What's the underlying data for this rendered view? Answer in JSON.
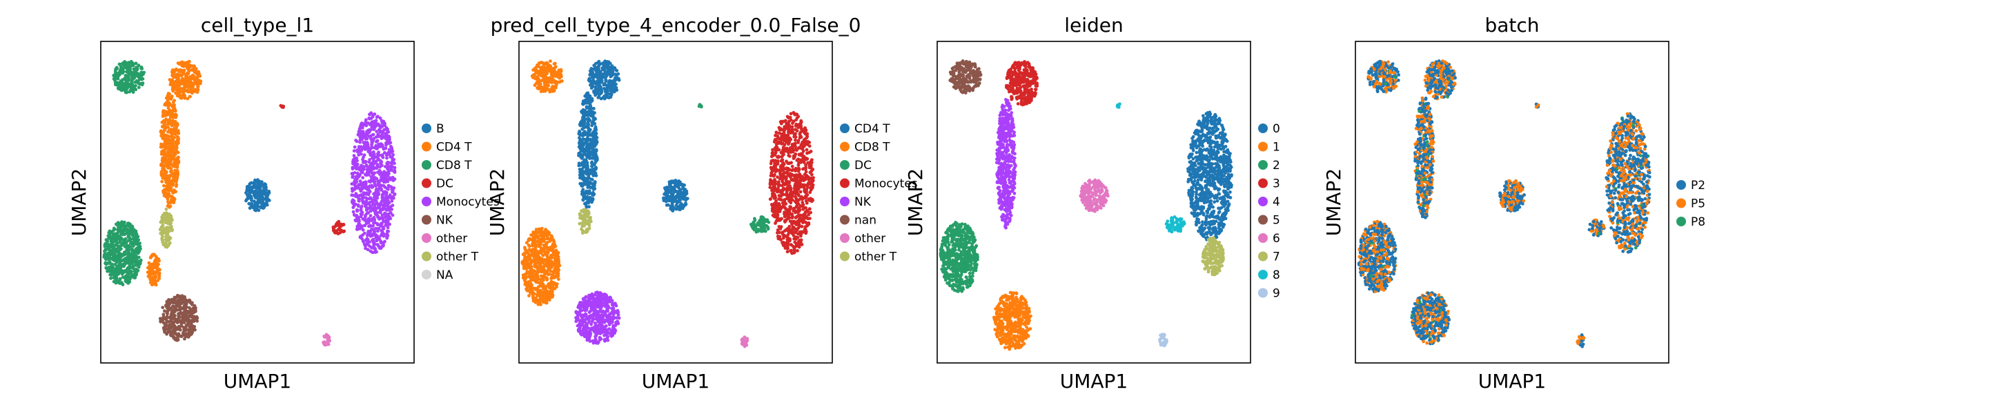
{
  "chart_data": [
    {
      "type": "scatter",
      "title": "cell_type_l1",
      "xlabel": "UMAP1",
      "ylabel": "UMAP2",
      "ticks": "none",
      "grid": false,
      "legend_position": "right",
      "legend": [
        {
          "label": "B",
          "color": "#1f77b4"
        },
        {
          "label": "CD4 T",
          "color": "#ff7f0e"
        },
        {
          "label": "CD8 T",
          "color": "#279e68"
        },
        {
          "label": "DC",
          "color": "#d62728"
        },
        {
          "label": "Monocytes",
          "color": "#aa40fc"
        },
        {
          "label": "NK",
          "color": "#8c564b"
        },
        {
          "label": "other",
          "color": "#e377c2"
        },
        {
          "label": "other T",
          "color": "#b5bd61"
        },
        {
          "label": "NA",
          "color": "#d3d3d3"
        }
      ],
      "clusters": [
        {
          "group": "CD8 T",
          "cx": 0.09,
          "cy": 0.89,
          "rx": 0.05,
          "ry": 0.05
        },
        {
          "group": "CD4 T",
          "cx": 0.27,
          "cy": 0.88,
          "rx": 0.05,
          "ry": 0.06
        },
        {
          "group": "CD4 T",
          "cx": 0.22,
          "cy": 0.66,
          "rx": 0.03,
          "ry": 0.18
        },
        {
          "group": "other T",
          "cx": 0.21,
          "cy": 0.42,
          "rx": 0.02,
          "ry": 0.06
        },
        {
          "group": "CD8 T",
          "cx": 0.07,
          "cy": 0.34,
          "rx": 0.06,
          "ry": 0.1
        },
        {
          "group": "CD4 T",
          "cx": 0.17,
          "cy": 0.29,
          "rx": 0.02,
          "ry": 0.05
        },
        {
          "group": "NK",
          "cx": 0.25,
          "cy": 0.14,
          "rx": 0.06,
          "ry": 0.07
        },
        {
          "group": "B",
          "cx": 0.5,
          "cy": 0.52,
          "rx": 0.04,
          "ry": 0.05
        },
        {
          "group": "Monocytes",
          "cx": 0.87,
          "cy": 0.56,
          "rx": 0.07,
          "ry": 0.22
        },
        {
          "group": "DC",
          "cx": 0.76,
          "cy": 0.42,
          "rx": 0.02,
          "ry": 0.02
        },
        {
          "group": "other",
          "cx": 0.72,
          "cy": 0.07,
          "rx": 0.012,
          "ry": 0.02
        },
        {
          "group": "DC",
          "cx": 0.58,
          "cy": 0.8,
          "rx": 0.006,
          "ry": 0.006
        }
      ]
    },
    {
      "type": "scatter",
      "title": "pred_cell_type_4_encoder_0.0_False_0",
      "xlabel": "UMAP1",
      "ylabel": "UMAP2",
      "ticks": "none",
      "grid": false,
      "legend_position": "right",
      "legend": [
        {
          "label": "CD4 T",
          "color": "#1f77b4"
        },
        {
          "label": "CD8 T",
          "color": "#ff7f0e"
        },
        {
          "label": "DC",
          "color": "#279e68"
        },
        {
          "label": "Monocytes",
          "color": "#d62728"
        },
        {
          "label": "NK",
          "color": "#aa40fc"
        },
        {
          "label": "nan",
          "color": "#8c564b"
        },
        {
          "label": "other",
          "color": "#e377c2"
        },
        {
          "label": "other T",
          "color": "#b5bd61"
        }
      ],
      "clusters": [
        {
          "group": "CD8 T",
          "cx": 0.09,
          "cy": 0.89,
          "rx": 0.05,
          "ry": 0.05
        },
        {
          "group": "CD4 T",
          "cx": 0.27,
          "cy": 0.88,
          "rx": 0.05,
          "ry": 0.06
        },
        {
          "group": "CD4 T",
          "cx": 0.22,
          "cy": 0.66,
          "rx": 0.03,
          "ry": 0.18
        },
        {
          "group": "other T",
          "cx": 0.21,
          "cy": 0.44,
          "rx": 0.02,
          "ry": 0.04
        },
        {
          "group": "CD8 T",
          "cx": 0.07,
          "cy": 0.3,
          "rx": 0.06,
          "ry": 0.12
        },
        {
          "group": "NK",
          "cx": 0.25,
          "cy": 0.14,
          "rx": 0.07,
          "ry": 0.08
        },
        {
          "group": "CD4 T",
          "cx": 0.5,
          "cy": 0.52,
          "rx": 0.04,
          "ry": 0.05
        },
        {
          "group": "Monocytes",
          "cx": 0.87,
          "cy": 0.56,
          "rx": 0.07,
          "ry": 0.22
        },
        {
          "group": "DC",
          "cx": 0.77,
          "cy": 0.43,
          "rx": 0.03,
          "ry": 0.025
        },
        {
          "group": "other",
          "cx": 0.72,
          "cy": 0.07,
          "rx": 0.012,
          "ry": 0.02
        },
        {
          "group": "DC",
          "cx": 0.58,
          "cy": 0.8,
          "rx": 0.006,
          "ry": 0.006
        }
      ]
    },
    {
      "type": "scatter",
      "title": "leiden",
      "xlabel": "UMAP1",
      "ylabel": "UMAP2",
      "ticks": "none",
      "grid": false,
      "legend_position": "right",
      "legend": [
        {
          "label": "0",
          "color": "#1f77b4"
        },
        {
          "label": "1",
          "color": "#ff7f0e"
        },
        {
          "label": "2",
          "color": "#279e68"
        },
        {
          "label": "3",
          "color": "#d62728"
        },
        {
          "label": "4",
          "color": "#aa40fc"
        },
        {
          "label": "5",
          "color": "#8c564b"
        },
        {
          "label": "6",
          "color": "#e377c2"
        },
        {
          "label": "7",
          "color": "#b5bd61"
        },
        {
          "label": "8",
          "color": "#17becf"
        },
        {
          "label": "9",
          "color": "#aec7e8"
        }
      ],
      "clusters": [
        {
          "group": "5",
          "cx": 0.09,
          "cy": 0.89,
          "rx": 0.05,
          "ry": 0.05
        },
        {
          "group": "3",
          "cx": 0.27,
          "cy": 0.87,
          "rx": 0.05,
          "ry": 0.07
        },
        {
          "group": "4",
          "cx": 0.22,
          "cy": 0.62,
          "rx": 0.03,
          "ry": 0.2
        },
        {
          "group": "2",
          "cx": 0.07,
          "cy": 0.33,
          "rx": 0.06,
          "ry": 0.11
        },
        {
          "group": "1",
          "cx": 0.24,
          "cy": 0.13,
          "rx": 0.06,
          "ry": 0.09
        },
        {
          "group": "6",
          "cx": 0.5,
          "cy": 0.52,
          "rx": 0.045,
          "ry": 0.05
        },
        {
          "group": "0",
          "cx": 0.87,
          "cy": 0.58,
          "rx": 0.07,
          "ry": 0.2
        },
        {
          "group": "8",
          "cx": 0.76,
          "cy": 0.43,
          "rx": 0.03,
          "ry": 0.025
        },
        {
          "group": "7",
          "cx": 0.88,
          "cy": 0.33,
          "rx": 0.035,
          "ry": 0.06
        },
        {
          "group": "9",
          "cx": 0.72,
          "cy": 0.07,
          "rx": 0.014,
          "ry": 0.02
        },
        {
          "group": "8",
          "cx": 0.58,
          "cy": 0.8,
          "rx": 0.006,
          "ry": 0.006
        }
      ]
    },
    {
      "type": "scatter",
      "title": "batch",
      "xlabel": "UMAP1",
      "ylabel": "UMAP2",
      "ticks": "none",
      "grid": false,
      "legend_position": "right",
      "legend": [
        {
          "label": "P2",
          "color": "#1f77b4"
        },
        {
          "label": "P5",
          "color": "#ff7f0e"
        },
        {
          "label": "P8",
          "color": "#279e68"
        }
      ],
      "mixed": true,
      "mix_weights": [
        0.6,
        0.38,
        0.02
      ],
      "clusters": [
        {
          "group": "mix",
          "cx": 0.09,
          "cy": 0.89,
          "rx": 0.05,
          "ry": 0.05
        },
        {
          "group": "mix",
          "cx": 0.27,
          "cy": 0.88,
          "rx": 0.05,
          "ry": 0.06
        },
        {
          "group": "mix",
          "cx": 0.22,
          "cy": 0.64,
          "rx": 0.03,
          "ry": 0.19
        },
        {
          "group": "mix",
          "cx": 0.07,
          "cy": 0.33,
          "rx": 0.06,
          "ry": 0.11
        },
        {
          "group": "mix",
          "cx": 0.24,
          "cy": 0.14,
          "rx": 0.06,
          "ry": 0.08
        },
        {
          "group": "mix",
          "cx": 0.5,
          "cy": 0.52,
          "rx": 0.04,
          "ry": 0.05
        },
        {
          "group": "mix",
          "cx": 0.87,
          "cy": 0.56,
          "rx": 0.07,
          "ry": 0.22
        },
        {
          "group": "mix",
          "cx": 0.77,
          "cy": 0.42,
          "rx": 0.025,
          "ry": 0.025
        },
        {
          "group": "mix",
          "cx": 0.72,
          "cy": 0.07,
          "rx": 0.012,
          "ry": 0.02
        },
        {
          "group": "mix",
          "cx": 0.58,
          "cy": 0.8,
          "rx": 0.006,
          "ry": 0.006
        }
      ]
    }
  ]
}
